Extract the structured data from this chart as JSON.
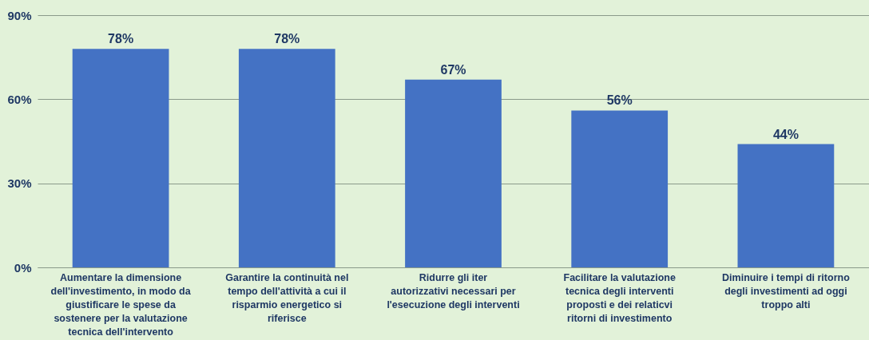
{
  "chart_data": {
    "type": "bar",
    "categories": [
      "Aumentare la dimensione dell'investimento, in modo da giustificare le spese da sostenere per la valutazione tecnica dell'intervento",
      "Garantire la continuità nel tempo dell'attività a cui il risparmio energetico si riferisce",
      "Ridurre gli iter autorizzativi necessari per l'esecuzione degli interventi",
      "Facilitare la valutazione tecnica degli interventi proposti e dei relaticvi ritorni di investimento",
      "Diminuire i tempi di ritorno degli investimenti ad oggi troppo alti"
    ],
    "values": [
      78,
      78,
      67,
      56,
      44
    ],
    "value_labels": [
      "78%",
      "78%",
      "67%",
      "56%",
      "44%"
    ],
    "color": "#4472c4",
    "ylim": [
      0,
      90
    ],
    "yticks": [
      {
        "value": 0,
        "label": "0%"
      },
      {
        "value": 30,
        "label": "30%"
      },
      {
        "value": 60,
        "label": "60%"
      },
      {
        "value": 90,
        "label": "90%"
      }
    ],
    "grid": "y"
  }
}
